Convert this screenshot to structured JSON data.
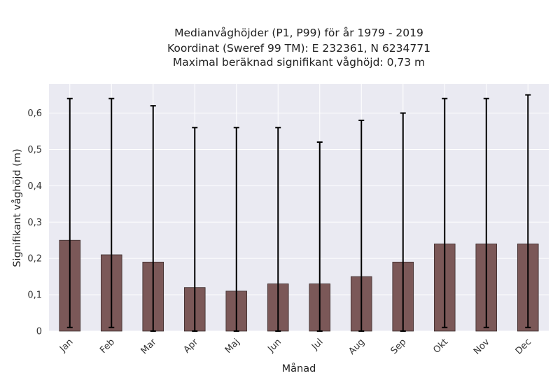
{
  "chart_data": {
    "type": "bar",
    "title_lines": [
      "Medianvåghöjder (P1, P99) för år 1979 - 2019",
      "Koordinat (Sweref 99 TM): E 232361, N 6234771",
      "Maximal beräknad signifikant våghöjd: 0,73 m"
    ],
    "xlabel": "Månad",
    "ylabel": "Signifikant våghöjd (m)",
    "categories": [
      "Jan",
      "Feb",
      "Mar",
      "Apr",
      "Maj",
      "Jun",
      "Jul",
      "Aug",
      "Sep",
      "Okt",
      "Nov",
      "Dec"
    ],
    "values": [
      0.25,
      0.21,
      0.19,
      0.12,
      0.11,
      0.13,
      0.13,
      0.15,
      0.19,
      0.24,
      0.24,
      0.24
    ],
    "error_low": [
      0.01,
      0.01,
      0.0,
      0.0,
      0.0,
      0.0,
      0.0,
      0.0,
      0.0,
      0.01,
      0.01,
      0.01
    ],
    "error_high": [
      0.64,
      0.64,
      0.62,
      0.56,
      0.56,
      0.56,
      0.52,
      0.58,
      0.6,
      0.64,
      0.64,
      0.65
    ],
    "ylim": [
      0,
      0.68
    ],
    "yticks": [
      0,
      0.1,
      0.2,
      0.3,
      0.4,
      0.5,
      0.6
    ],
    "ytick_labels": [
      "0",
      "0,1",
      "0,2",
      "0,3",
      "0,4",
      "0,5",
      "0,6"
    ],
    "grid": true,
    "colors": {
      "bar_fill": "#7b5858",
      "bar_edge": "#3a2a2a",
      "error_bar": "#000000",
      "plot_background": "#eaeaf2",
      "grid": "#ffffff"
    }
  }
}
